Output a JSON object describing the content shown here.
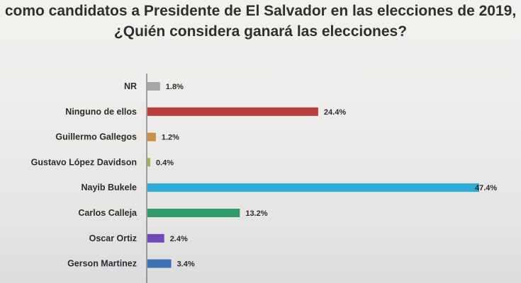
{
  "chart_data": {
    "type": "bar",
    "orientation": "horizontal",
    "title_lines": [
      "como candidatos a Presidente de El Salvador en las elecciones de 2019,",
      "¿Quién considera ganará las elecciones?"
    ],
    "categories": [
      "NR",
      "Ninguno de ellos",
      "Guillermo Gallegos",
      "Gustavo López Davidson",
      "Nayib Bukele",
      "Carlos Calleja",
      "Oscar Ortiz",
      "Gerson Martinez"
    ],
    "values": [
      1.8,
      24.4,
      1.2,
      0.4,
      47.4,
      13.2,
      2.4,
      3.4
    ],
    "value_labels": [
      "1.8%",
      "24.4%",
      "1.2%",
      "0.4%",
      "47.4%",
      "13.2%",
      "2.4%",
      "3.4%"
    ],
    "bar_colors": [
      "#a6a6a8",
      "#b93c3f",
      "#c98f45",
      "#a4b150",
      "#2eabd6",
      "#2f9a69",
      "#7048b8",
      "#3f72b4"
    ],
    "xlim": [
      0,
      47.4
    ],
    "grid": false,
    "xlabel": "",
    "ylabel": ""
  }
}
